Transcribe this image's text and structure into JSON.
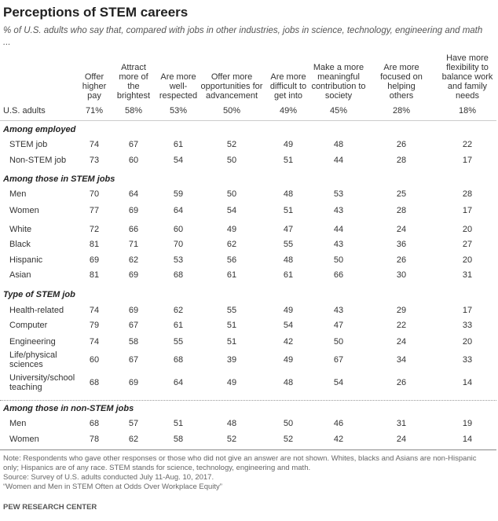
{
  "title": "Perceptions of STEM careers",
  "subtitle": "% of U.S. adults who say that, compared with jobs in other industries, jobs in science, technology, engineering and math ...",
  "columns": [
    "Offer higher pay",
    "Attract more of the brightest",
    "Are more well-respected",
    "Offer more opportunities for advancement",
    "Are more difficult to get into",
    "Make a more meaningful contribution to society",
    "Are more focused on helping others",
    "Have more flexibility to balance work and family needs"
  ],
  "total": {
    "label": "U.S. adults",
    "values": [
      "71%",
      "58%",
      "53%",
      "50%",
      "49%",
      "45%",
      "28%",
      "18%"
    ]
  },
  "sections": [
    {
      "heading": "Among employed",
      "rows": [
        {
          "label": "STEM job",
          "values": [
            74,
            67,
            61,
            52,
            49,
            48,
            26,
            22
          ]
        },
        {
          "label": "Non-STEM job",
          "values": [
            73,
            60,
            54,
            50,
            51,
            44,
            28,
            17
          ]
        }
      ]
    },
    {
      "heading": "Among those in STEM jobs",
      "rows": [
        {
          "label": "Men",
          "values": [
            70,
            64,
            59,
            50,
            48,
            53,
            25,
            28
          ]
        },
        {
          "label": "Women",
          "values": [
            77,
            69,
            64,
            54,
            51,
            43,
            28,
            17
          ]
        },
        {
          "label": "White",
          "values": [
            72,
            66,
            60,
            49,
            47,
            44,
            24,
            20
          ]
        },
        {
          "label": "Black",
          "values": [
            81,
            71,
            70,
            62,
            55,
            43,
            36,
            27
          ]
        },
        {
          "label": "Hispanic",
          "values": [
            69,
            62,
            53,
            56,
            48,
            50,
            26,
            20
          ]
        },
        {
          "label": "Asian",
          "values": [
            81,
            69,
            68,
            61,
            61,
            66,
            30,
            31
          ]
        }
      ]
    },
    {
      "heading": "Type of STEM job",
      "rows": [
        {
          "label": "Health-related",
          "values": [
            74,
            69,
            62,
            55,
            49,
            43,
            29,
            17
          ]
        },
        {
          "label": "Computer",
          "values": [
            79,
            67,
            61,
            51,
            54,
            47,
            22,
            33
          ]
        },
        {
          "label": "Engineering",
          "values": [
            74,
            58,
            55,
            51,
            42,
            50,
            24,
            20
          ]
        },
        {
          "label": "Life/physical sciences",
          "values": [
            60,
            67,
            68,
            39,
            49,
            67,
            34,
            33
          ]
        },
        {
          "label": "University/school teaching",
          "values": [
            68,
            69,
            64,
            49,
            48,
            54,
            26,
            14
          ]
        }
      ]
    },
    {
      "heading": "Among those in non-STEM jobs",
      "rows": [
        {
          "label": "Men",
          "values": [
            68,
            57,
            51,
            48,
            50,
            46,
            31,
            19
          ]
        },
        {
          "label": "Women",
          "values": [
            78,
            62,
            58,
            52,
            52,
            42,
            24,
            14
          ]
        }
      ]
    }
  ],
  "note": "Note: Respondents who gave other responses or those who did not give an answer are not shown. Whites, blacks and Asians are non-Hispanic only; Hispanics are of any race. STEM stands for science, technology, engineering and math.",
  "source": "Source: Survey of U.S. adults conducted July 11-Aug. 10, 2017.",
  "report": "“Women and Men in STEM Often at Odds Over Workplace Equity”",
  "credit": "PEW RESEARCH CENTER"
}
